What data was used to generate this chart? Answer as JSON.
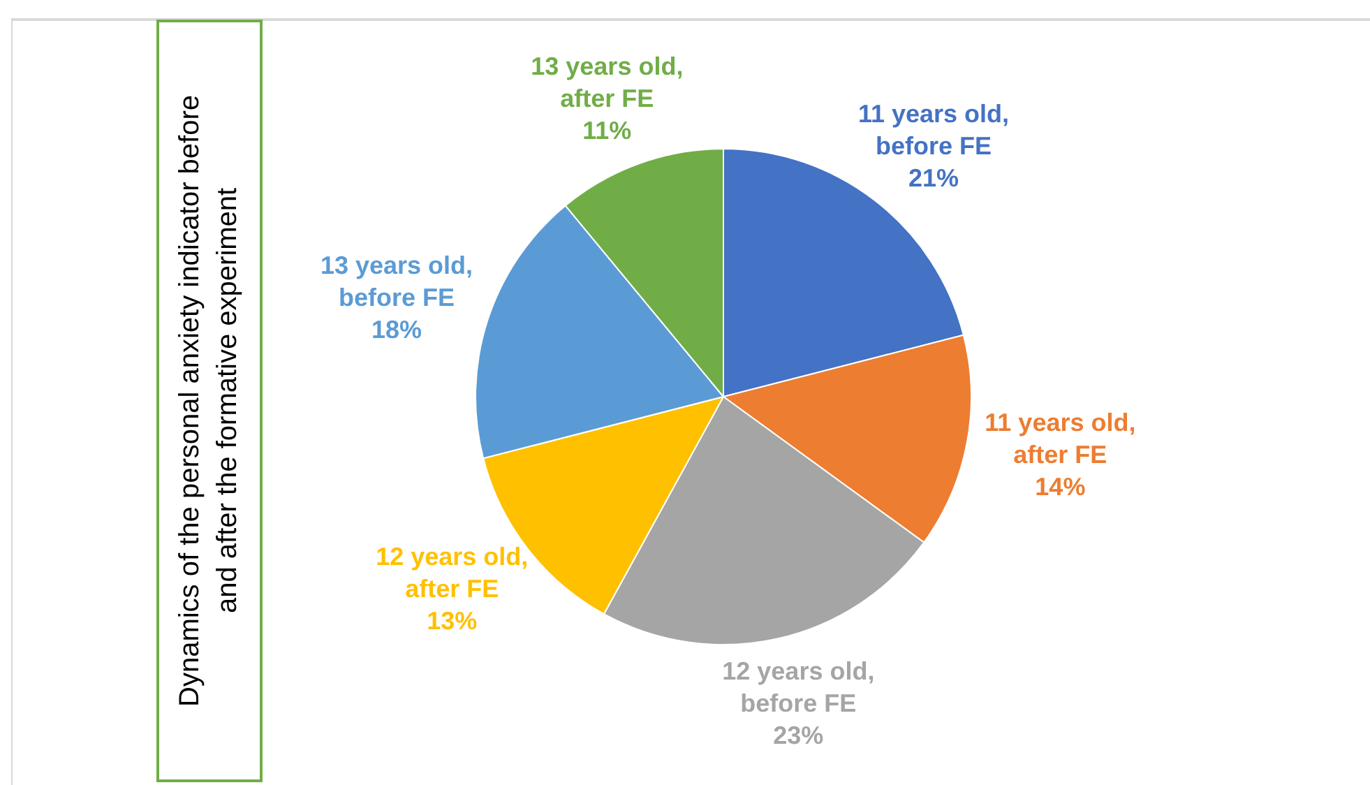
{
  "chart_data": {
    "type": "pie",
    "title": "Dynamics of the personal anxiety indicator before and after the formative experiment",
    "categories": [
      "11 years old, before FE",
      "11 years old, after FE",
      "12 years old, before FE",
      "12 years old, after FE",
      "13 years old, before FE",
      "13 years old, after FE"
    ],
    "values": [
      21,
      14,
      23,
      13,
      18,
      11
    ],
    "value_labels": [
      "21%",
      "14%",
      "23%",
      "13%",
      "18%",
      "11%"
    ],
    "colors": [
      "#4472c4",
      "#ed7d31",
      "#a5a5a5",
      "#ffc000",
      "#5b9bd5",
      "#70ad47"
    ]
  }
}
